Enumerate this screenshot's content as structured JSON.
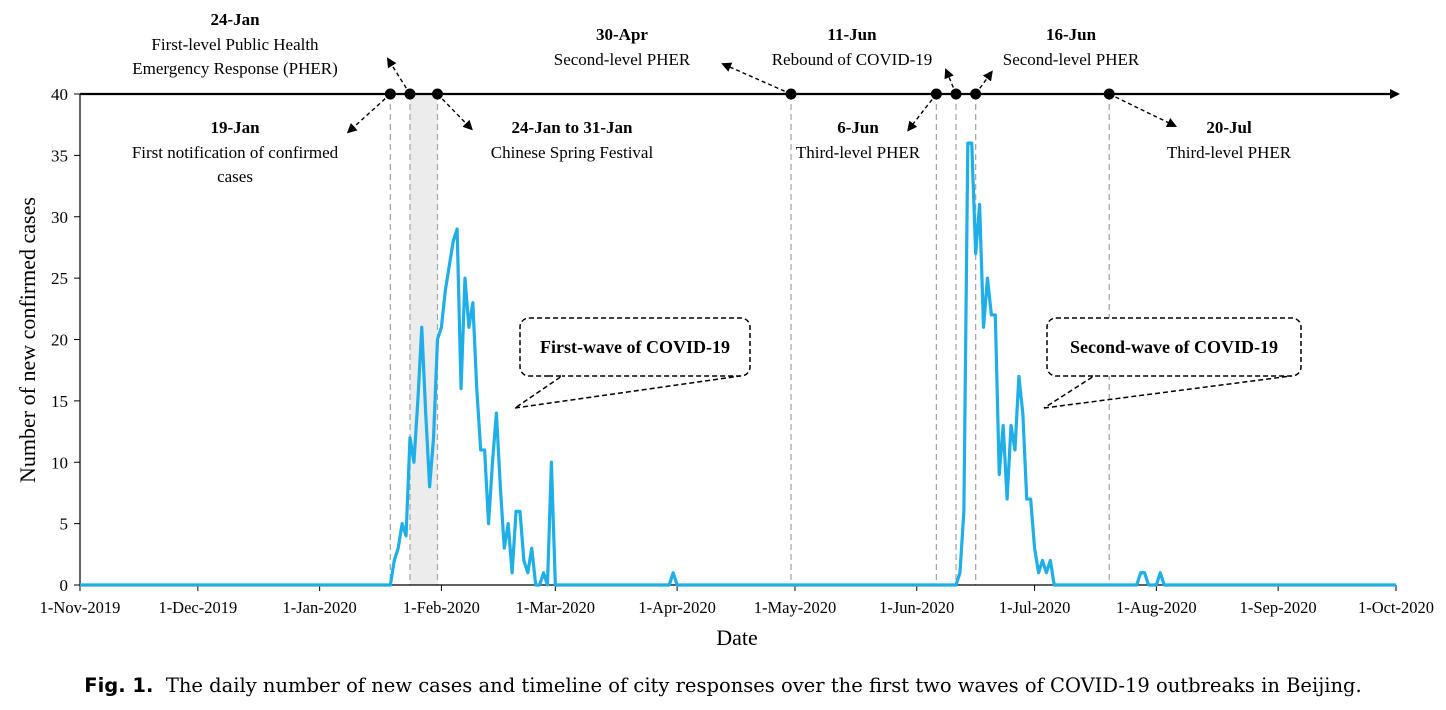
{
  "chart_data": {
    "type": "line",
    "xlabel": "Date",
    "ylabel": "Number of new confirmed cases",
    "x_range": [
      "2019-11-01",
      "2020-10-01"
    ],
    "ylim": [
      0,
      40
    ],
    "yticks": [
      0,
      5,
      10,
      15,
      20,
      25,
      30,
      35,
      40
    ],
    "xticks": [
      {
        "date": "2019-11-01",
        "label": "1-Nov-2019"
      },
      {
        "date": "2019-12-01",
        "label": "1-Dec-2019"
      },
      {
        "date": "2020-01-01",
        "label": "1-Jan-2020"
      },
      {
        "date": "2020-02-01",
        "label": "1-Feb-2020"
      },
      {
        "date": "2020-03-01",
        "label": "1-Mar-2020"
      },
      {
        "date": "2020-04-01",
        "label": "1-Apr-2020"
      },
      {
        "date": "2020-05-01",
        "label": "1-May-2020"
      },
      {
        "date": "2020-06-01",
        "label": "1-Jun-2020"
      },
      {
        "date": "2020-07-01",
        "label": "1-Jul-2020"
      },
      {
        "date": "2020-08-01",
        "label": "1-Aug-2020"
      },
      {
        "date": "2020-09-01",
        "label": "1-Sep-2020"
      },
      {
        "date": "2020-10-01",
        "label": "1-Oct-2020"
      }
    ],
    "series": [
      {
        "color": "#1eaee8",
        "points": [
          [
            "2019-11-01",
            0
          ],
          [
            "2020-01-19",
            0
          ],
          [
            "2020-01-20",
            2
          ],
          [
            "2020-01-21",
            3
          ],
          [
            "2020-01-22",
            5
          ],
          [
            "2020-01-23",
            4
          ],
          [
            "2020-01-24",
            12
          ],
          [
            "2020-01-25",
            10
          ],
          [
            "2020-01-26",
            15
          ],
          [
            "2020-01-27",
            21
          ],
          [
            "2020-01-28",
            14
          ],
          [
            "2020-01-29",
            8
          ],
          [
            "2020-01-30",
            12
          ],
          [
            "2020-01-31",
            20
          ],
          [
            "2020-02-01",
            21
          ],
          [
            "2020-02-02",
            24
          ],
          [
            "2020-02-03",
            26
          ],
          [
            "2020-02-04",
            28
          ],
          [
            "2020-02-05",
            29
          ],
          [
            "2020-02-06",
            16
          ],
          [
            "2020-02-07",
            25
          ],
          [
            "2020-02-08",
            21
          ],
          [
            "2020-02-09",
            23
          ],
          [
            "2020-02-10",
            16
          ],
          [
            "2020-02-11",
            11
          ],
          [
            "2020-02-12",
            11
          ],
          [
            "2020-02-13",
            5
          ],
          [
            "2020-02-14",
            10
          ],
          [
            "2020-02-15",
            14
          ],
          [
            "2020-02-16",
            8
          ],
          [
            "2020-02-17",
            3
          ],
          [
            "2020-02-18",
            5
          ],
          [
            "2020-02-19",
            1
          ],
          [
            "2020-02-20",
            6
          ],
          [
            "2020-02-21",
            6
          ],
          [
            "2020-02-22",
            2
          ],
          [
            "2020-02-23",
            1
          ],
          [
            "2020-02-24",
            3
          ],
          [
            "2020-02-25",
            0
          ],
          [
            "2020-02-26",
            0
          ],
          [
            "2020-02-27",
            1
          ],
          [
            "2020-02-28",
            0
          ],
          [
            "2020-02-29",
            10
          ],
          [
            "2020-03-01",
            0
          ],
          [
            "2020-03-30",
            0
          ],
          [
            "2020-03-31",
            1
          ],
          [
            "2020-04-01",
            0
          ],
          [
            "2020-06-11",
            0
          ],
          [
            "2020-06-12",
            1
          ],
          [
            "2020-06-13",
            6
          ],
          [
            "2020-06-14",
            36
          ],
          [
            "2020-06-15",
            36
          ],
          [
            "2020-06-16",
            27
          ],
          [
            "2020-06-17",
            31
          ],
          [
            "2020-06-18",
            21
          ],
          [
            "2020-06-19",
            25
          ],
          [
            "2020-06-20",
            22
          ],
          [
            "2020-06-21",
            22
          ],
          [
            "2020-06-22",
            9
          ],
          [
            "2020-06-23",
            13
          ],
          [
            "2020-06-24",
            7
          ],
          [
            "2020-06-25",
            13
          ],
          [
            "2020-06-26",
            11
          ],
          [
            "2020-06-27",
            17
          ],
          [
            "2020-06-28",
            14
          ],
          [
            "2020-06-29",
            7
          ],
          [
            "2020-06-30",
            7
          ],
          [
            "2020-07-01",
            3
          ],
          [
            "2020-07-02",
            1
          ],
          [
            "2020-07-03",
            2
          ],
          [
            "2020-07-04",
            1
          ],
          [
            "2020-07-05",
            2
          ],
          [
            "2020-07-06",
            0
          ],
          [
            "2020-07-27",
            0
          ],
          [
            "2020-07-28",
            1
          ],
          [
            "2020-07-29",
            1
          ],
          [
            "2020-07-30",
            0
          ],
          [
            "2020-08-01",
            0
          ],
          [
            "2020-08-02",
            1
          ],
          [
            "2020-08-03",
            0
          ],
          [
            "2020-10-01",
            0
          ]
        ]
      }
    ],
    "shaded_period": {
      "start": "2020-01-24",
      "end": "2020-01-31"
    },
    "timeline": {
      "events": [
        {
          "date": "2020-01-19",
          "title": "19-Jan",
          "text": [
            "First notification of confirmed",
            "cases"
          ],
          "side": "below"
        },
        {
          "date": "2020-01-24",
          "title": "24-Jan",
          "text": [
            "First-level Public Health",
            "Emergency Response (PHER)"
          ],
          "side": "above"
        },
        {
          "date": "2020-01-31",
          "title": "24-Jan to 31-Jan",
          "text": [
            "Chinese Spring Festival"
          ],
          "side": "below"
        },
        {
          "date": "2020-04-30",
          "title": "30-Apr",
          "text": [
            "Second-level PHER"
          ],
          "side": "above"
        },
        {
          "date": "2020-06-06",
          "title": "6-Jun",
          "text": [
            "Third-level PHER"
          ],
          "side": "below"
        },
        {
          "date": "2020-06-11",
          "title": "11-Jun",
          "text": [
            "Rebound of COVID-19"
          ],
          "side": "above"
        },
        {
          "date": "2020-06-16",
          "title": "16-Jun",
          "text": [
            "Second-level PHER"
          ],
          "side": "above"
        },
        {
          "date": "2020-07-20",
          "title": "20-Jul",
          "text": [
            "Third-level PHER"
          ],
          "side": "below"
        }
      ]
    },
    "annotations": [
      {
        "text": "First-wave of COVID-19"
      },
      {
        "text": "Second-wave of COVID-19"
      }
    ]
  },
  "caption": {
    "label": "Fig. 1.",
    "text": "The daily number of new cases and timeline of city responses over the first two waves of COVID-19 outbreaks in Beijing."
  }
}
